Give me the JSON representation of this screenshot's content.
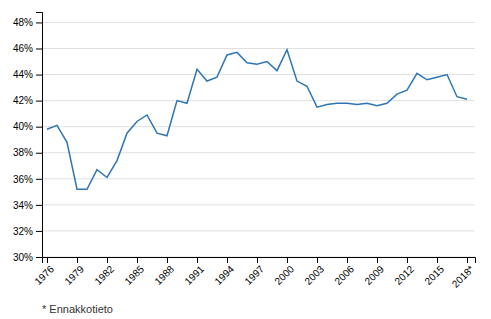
{
  "chart_data": {
    "type": "line",
    "x": [
      1976,
      1977,
      1978,
      1979,
      1980,
      1981,
      1982,
      1983,
      1984,
      1985,
      1986,
      1987,
      1988,
      1989,
      1990,
      1991,
      1992,
      1993,
      1994,
      1995,
      1996,
      1997,
      1998,
      1999,
      2000,
      2001,
      2002,
      2003,
      2004,
      2005,
      2006,
      2007,
      2008,
      2009,
      2010,
      2011,
      2012,
      2013,
      2014,
      2015,
      2016,
      2017,
      2018
    ],
    "values": [
      39.8,
      40.1,
      38.8,
      35.2,
      35.2,
      36.7,
      36.1,
      37.4,
      39.5,
      40.4,
      40.9,
      39.5,
      39.3,
      42.0,
      41.8,
      44.4,
      43.5,
      43.8,
      45.5,
      45.7,
      44.9,
      44.8,
      45.0,
      44.3,
      45.9,
      43.5,
      43.1,
      41.5,
      41.7,
      41.8,
      41.8,
      41.7,
      41.8,
      41.6,
      41.8,
      42.5,
      42.8,
      44.1,
      43.6,
      43.8,
      44.0,
      42.3,
      42.1
    ],
    "color": "#2E75B6",
    "xlim": [
      1975.5,
      2018.8
    ],
    "xticks": [
      1976,
      1979,
      1982,
      1985,
      1988,
      1991,
      1994,
      1997,
      2000,
      2003,
      2006,
      2009,
      2012,
      2015,
      {
        "value": 2018,
        "label": "2018*"
      }
    ],
    "ylim": [
      30,
      48.8
    ],
    "yticks": [
      {
        "value": 30,
        "label": "30%"
      },
      {
        "value": 32,
        "label": "32%"
      },
      {
        "value": 34,
        "label": "34%"
      },
      {
        "value": 36,
        "label": "36%"
      },
      {
        "value": 38,
        "label": "38%"
      },
      {
        "value": 40,
        "label": "40%"
      },
      {
        "value": 42,
        "label": "42%"
      },
      {
        "value": 44,
        "label": "44%"
      },
      {
        "value": 46,
        "label": "46%"
      },
      {
        "value": 48,
        "label": "48%"
      }
    ],
    "grid": "y",
    "annotations": [
      "* Ennakkotieto"
    ]
  }
}
